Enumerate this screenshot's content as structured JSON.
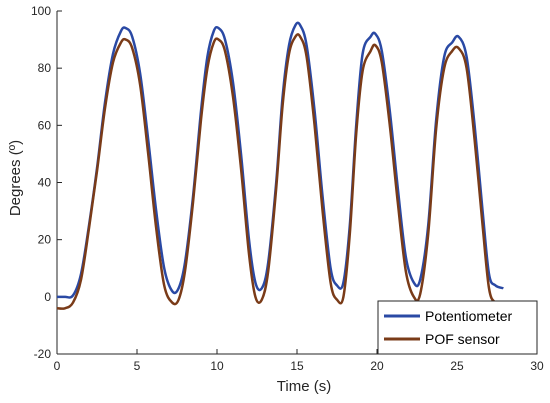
{
  "chart_data": {
    "type": "line",
    "title": "",
    "xlabel": "Time (s)",
    "ylabel": "Degrees (º)",
    "xlim": [
      0,
      30
    ],
    "ylim": [
      -20,
      100
    ],
    "xticks": [
      "0",
      "5",
      "10",
      "15",
      "20",
      "25",
      "30"
    ],
    "yticks": [
      "-20",
      "0",
      "20",
      "40",
      "60",
      "80",
      "100"
    ],
    "grid": false,
    "legend_position": "bottom-right",
    "series": [
      {
        "name": "Potentiometer",
        "color": "#2a49a4",
        "points": [
          [
            0,
            0
          ],
          [
            0.5,
            0
          ],
          [
            1,
            0.5
          ],
          [
            1.5,
            8
          ],
          [
            2,
            25
          ],
          [
            2.5,
            45
          ],
          [
            3,
            68
          ],
          [
            3.5,
            85
          ],
          [
            4,
            93
          ],
          [
            4.3,
            94
          ],
          [
            4.7,
            91
          ],
          [
            5.2,
            78
          ],
          [
            5.7,
            55
          ],
          [
            6.2,
            30
          ],
          [
            6.7,
            10
          ],
          [
            7.2,
            2
          ],
          [
            7.6,
            3
          ],
          [
            8,
            12
          ],
          [
            8.5,
            35
          ],
          [
            9,
            65
          ],
          [
            9.4,
            84
          ],
          [
            9.8,
            93
          ],
          [
            10.1,
            94
          ],
          [
            10.5,
            90
          ],
          [
            11,
            75
          ],
          [
            11.5,
            50
          ],
          [
            12,
            20
          ],
          [
            12.4,
            5
          ],
          [
            12.8,
            3
          ],
          [
            13.2,
            12
          ],
          [
            13.7,
            40
          ],
          [
            14.1,
            70
          ],
          [
            14.5,
            88
          ],
          [
            14.9,
            95
          ],
          [
            15.2,
            95
          ],
          [
            15.6,
            88
          ],
          [
            16.1,
            65
          ],
          [
            16.6,
            35
          ],
          [
            17.1,
            10
          ],
          [
            17.5,
            4
          ],
          [
            17.9,
            5
          ],
          [
            18.3,
            25
          ],
          [
            18.7,
            60
          ],
          [
            19.1,
            85
          ],
          [
            19.6,
            91
          ],
          [
            19.9,
            92
          ],
          [
            20.3,
            86
          ],
          [
            20.8,
            65
          ],
          [
            21.3,
            38
          ],
          [
            21.8,
            14
          ],
          [
            22.3,
            5
          ],
          [
            22.7,
            6
          ],
          [
            23.2,
            25
          ],
          [
            23.7,
            62
          ],
          [
            24.2,
            84
          ],
          [
            24.7,
            89
          ],
          [
            25.1,
            91
          ],
          [
            25.6,
            84
          ],
          [
            26.1,
            60
          ],
          [
            26.6,
            30
          ],
          [
            27,
            8
          ],
          [
            27.4,
            4
          ],
          [
            27.9,
            3
          ]
        ]
      },
      {
        "name": "POF sensor",
        "color": "#7a3b18",
        "points": [
          [
            0,
            -4
          ],
          [
            0.5,
            -4
          ],
          [
            1,
            -2
          ],
          [
            1.5,
            6
          ],
          [
            2,
            24
          ],
          [
            2.5,
            44
          ],
          [
            3,
            66
          ],
          [
            3.5,
            82
          ],
          [
            4,
            89
          ],
          [
            4.3,
            90
          ],
          [
            4.7,
            87
          ],
          [
            5.2,
            74
          ],
          [
            5.7,
            50
          ],
          [
            6.2,
            24
          ],
          [
            6.7,
            4
          ],
          [
            7.2,
            -2
          ],
          [
            7.6,
            -1
          ],
          [
            8,
            9
          ],
          [
            8.5,
            33
          ],
          [
            9,
            62
          ],
          [
            9.4,
            80
          ],
          [
            9.8,
            89
          ],
          [
            10.1,
            90
          ],
          [
            10.5,
            86
          ],
          [
            11,
            70
          ],
          [
            11.5,
            45
          ],
          [
            12,
            15
          ],
          [
            12.4,
            0
          ],
          [
            12.8,
            -1
          ],
          [
            13.2,
            9
          ],
          [
            13.7,
            38
          ],
          [
            14.1,
            67
          ],
          [
            14.5,
            85
          ],
          [
            14.9,
            91
          ],
          [
            15.2,
            91
          ],
          [
            15.6,
            84
          ],
          [
            16.1,
            60
          ],
          [
            16.6,
            30
          ],
          [
            17.1,
            5
          ],
          [
            17.5,
            -1
          ],
          [
            17.9,
            0
          ],
          [
            18.3,
            22
          ],
          [
            18.7,
            57
          ],
          [
            19.1,
            79
          ],
          [
            19.6,
            86
          ],
          [
            19.9,
            88
          ],
          [
            20.3,
            82
          ],
          [
            20.8,
            60
          ],
          [
            21.3,
            33
          ],
          [
            21.8,
            9
          ],
          [
            22.3,
            0
          ],
          [
            22.7,
            1
          ],
          [
            23.2,
            22
          ],
          [
            23.7,
            59
          ],
          [
            24.2,
            80
          ],
          [
            24.7,
            86
          ],
          [
            25.1,
            87
          ],
          [
            25.6,
            80
          ],
          [
            26.1,
            55
          ],
          [
            26.6,
            25
          ],
          [
            27,
            3
          ],
          [
            27.4,
            -2
          ],
          [
            27.9,
            -2
          ]
        ]
      }
    ]
  }
}
